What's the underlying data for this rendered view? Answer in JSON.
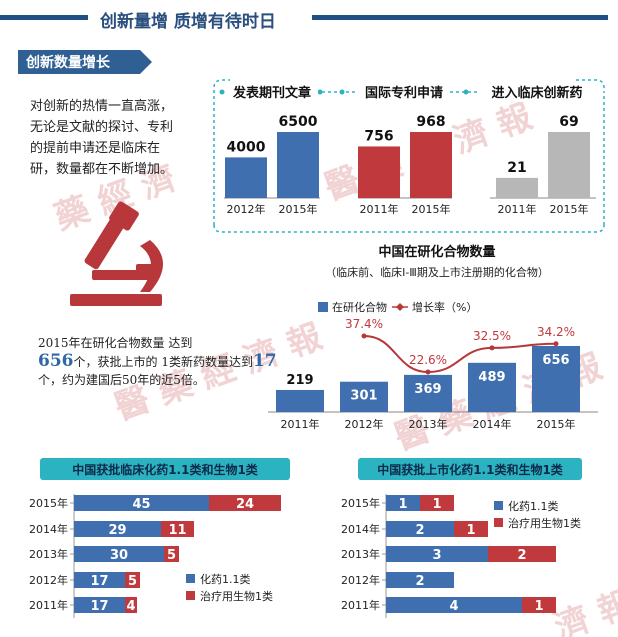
{
  "header": {
    "title": "创新量增 质增有待时日",
    "subtitle": "创新数量增长"
  },
  "colors": {
    "blue": "#3f6fae",
    "red": "#c0393c",
    "gray": "#b7b7b7",
    "teal": "#2cb3c2",
    "navy": "#2f5f93",
    "growth_line": "#b8373a"
  },
  "icons": {
    "microscope": "microscope-icon",
    "header_bar": "header-line",
    "watermark": "newspaper-watermark-seal"
  },
  "intro": {
    "text": "对创新的热情一直高涨，无论是文献的探讨、专利的提前申请还是临床在研，数量都在不断增加。"
  },
  "stat": {
    "pre": "2015年在研化合物数量 达到",
    "num1": "656",
    "mid": "个，获批上市的 1类新药数量达到",
    "num2": "17",
    "post": "个，约为建国后50年的近5倍。"
  },
  "watermark": {
    "text": "医药经济报"
  },
  "chart_data": [
    {
      "type": "bar",
      "title": "发表期刊文章",
      "categories": [
        "2012年",
        "2015年"
      ],
      "values": [
        4000,
        6500
      ],
      "value_labels": [
        "4000",
        "6500"
      ],
      "color": "#3f6fae"
    },
    {
      "type": "bar",
      "title": "国际专利申请",
      "categories": [
        "2011年",
        "2015年"
      ],
      "values": [
        756,
        968
      ],
      "value_labels": [
        "756",
        "968"
      ],
      "color": "#c0393c"
    },
    {
      "type": "bar",
      "title": "进入临床创新药",
      "categories": [
        "2011年",
        "2015年"
      ],
      "values": [
        21,
        69
      ],
      "value_labels": [
        "21",
        "69"
      ],
      "color": "#b7b7b7"
    },
    {
      "type": "bar",
      "title": "中国在研化合物数量",
      "subtitle": "（临床前、临床Ⅰ-Ⅲ期及上市注册期的化合物）",
      "categories": [
        "2011年",
        "2012年",
        "2013年",
        "2014年",
        "2015年"
      ],
      "series": [
        {
          "name": "在研化合物",
          "values": [
            219,
            301,
            369,
            489,
            656
          ],
          "labels": [
            "219",
            "301",
            "369",
            "489",
            "656"
          ]
        },
        {
          "name": "增长率（%）",
          "values": [
            null,
            37.4,
            22.6,
            32.5,
            34.2
          ],
          "labels": [
            "",
            "37.4%",
            "22.6%",
            "32.5%",
            "34.2%"
          ]
        }
      ],
      "legend": "top"
    },
    {
      "type": "bar",
      "stacked": true,
      "orientation": "horizontal",
      "title": "中国获批临床化药1.1类和生物1类",
      "categories": [
        "2015年",
        "2014年",
        "2013年",
        "2012年",
        "2011年"
      ],
      "series": [
        {
          "name": "化药1.1类",
          "values": [
            45,
            29,
            30,
            17,
            17
          ]
        },
        {
          "name": "治疗用生物1类",
          "values": [
            24,
            11,
            5,
            5,
            4
          ]
        }
      ],
      "legend": "bottom-right"
    },
    {
      "type": "bar",
      "stacked": true,
      "orientation": "horizontal",
      "title": "中国获批上市化药1.1类和生物1类",
      "categories": [
        "2015年",
        "2014年",
        "2013年",
        "2012年",
        "2011年"
      ],
      "series": [
        {
          "name": "化药1.1类",
          "values": [
            1,
            2,
            3,
            2,
            4
          ]
        },
        {
          "name": "治疗用生物1类",
          "values": [
            1,
            1,
            2,
            0,
            1
          ]
        }
      ],
      "legend": "top-right"
    }
  ]
}
